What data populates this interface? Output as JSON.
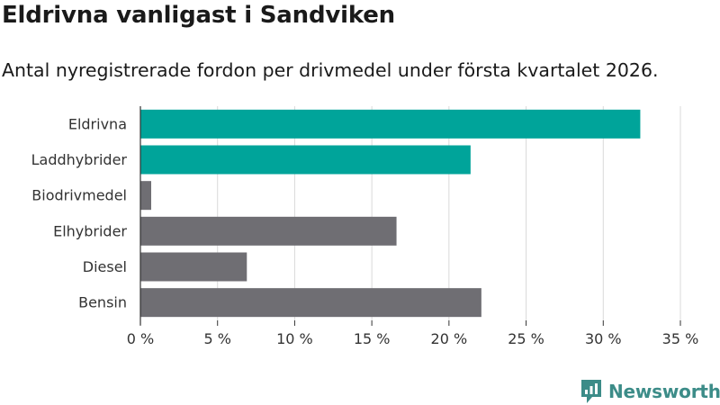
{
  "header": {
    "title": "Eldrivna vanligast i Sandviken",
    "subtitle": "Antal nyregistrerade fordon per drivmedel under första kvartalet 2026."
  },
  "brand": {
    "name": "Newsworthy",
    "logo_icon": "newsworthy-logo-icon",
    "color": "#3c8c88"
  },
  "colors": {
    "highlight": "#00a49a",
    "default": "#6f6e73",
    "grid": "#d9d9d9",
    "axis": "#333333",
    "text": "#333333"
  },
  "chart_data": {
    "type": "bar",
    "orientation": "horizontal",
    "title": "Eldrivna vanligast i Sandviken",
    "subtitle": "Antal nyregistrerade fordon per drivmedel under första kvartalet 2026.",
    "xlabel": "",
    "ylabel": "",
    "categories": [
      "Eldrivna",
      "Laddhybrider",
      "Biodrivmedel",
      "Elhybrider",
      "Diesel",
      "Bensin"
    ],
    "values": [
      32.4,
      21.4,
      0.7,
      16.6,
      6.9,
      22.1
    ],
    "highlighted": [
      true,
      true,
      false,
      false,
      false,
      false
    ],
    "xlim": [
      0,
      35
    ],
    "ticks": [
      0,
      5,
      10,
      15,
      20,
      25,
      30,
      35
    ],
    "tick_labels": [
      "0 %",
      "5 %",
      "10 %",
      "15 %",
      "20 %",
      "25 %",
      "30 %",
      "35 %"
    ],
    "grid": true,
    "legend": "none"
  }
}
